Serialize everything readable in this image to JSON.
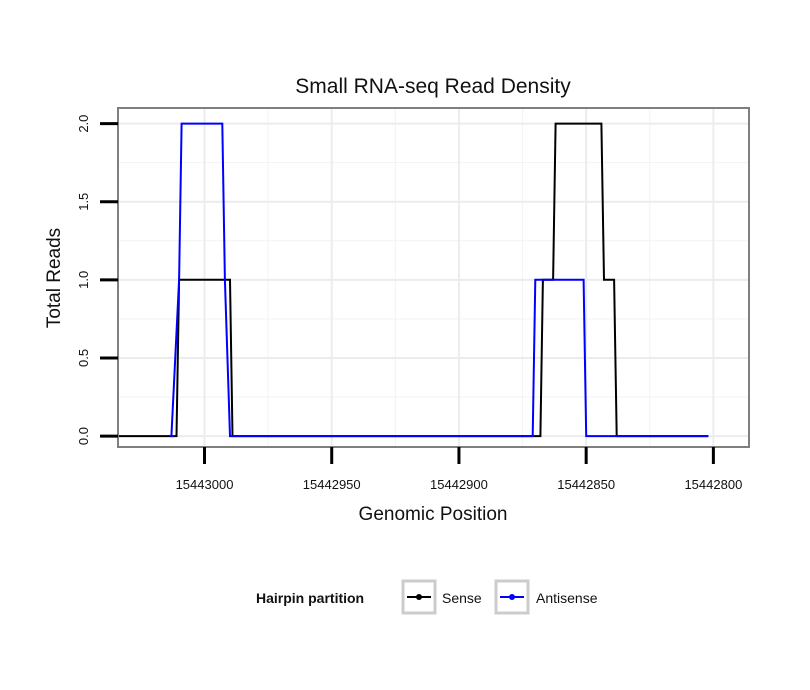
{
  "chart_data": {
    "type": "line",
    "title": "Small RNA-seq Read Density",
    "xlabel": "Genomic Position",
    "ylabel": "Total Reads",
    "x_reversed": true,
    "xlim": [
      15443034,
      15442786
    ],
    "ylim": [
      -0.07,
      2.1
    ],
    "x_ticks": [
      15443000,
      15442950,
      15442900,
      15442850,
      15442800
    ],
    "x_tick_labels": [
      "15443000",
      "15442950",
      "15442900",
      "15442850",
      "15442800"
    ],
    "y_ticks": [
      0.0,
      0.5,
      1.0,
      1.5,
      2.0
    ],
    "y_tick_labels": [
      "0.0",
      "0.5",
      "1.0",
      "1.5",
      "2.0"
    ],
    "grid": true,
    "legend": {
      "title": "Hairpin partition",
      "position": "bottom",
      "entries": [
        "Sense",
        "Antisense"
      ]
    },
    "series": [
      {
        "name": "Sense",
        "color": "#000000",
        "x": [
          15443034,
          15443011,
          15443010,
          15442991,
          15442990,
          15442989,
          15442868,
          15442867,
          15442863,
          15442862,
          15442844,
          15442843,
          15442839,
          15442838,
          15442802
        ],
        "y": [
          0,
          0,
          1,
          1,
          1,
          0,
          0,
          1,
          1,
          2,
          2,
          1,
          1,
          0,
          0
        ]
      },
      {
        "name": "Antisense",
        "color": "#0000ff",
        "x": [
          15443012,
          15443013,
          15443010,
          15443009,
          15442993,
          15442992,
          15442990,
          15442989,
          15442871,
          15442870,
          15442851,
          15442850,
          15442832,
          15442831,
          15442829,
          15442828,
          15442802
        ],
        "y": [
          0,
          0,
          1,
          2,
          2,
          1,
          0,
          0,
          0,
          1,
          1,
          0,
          0,
          0,
          0,
          0,
          0
        ]
      }
    ]
  }
}
